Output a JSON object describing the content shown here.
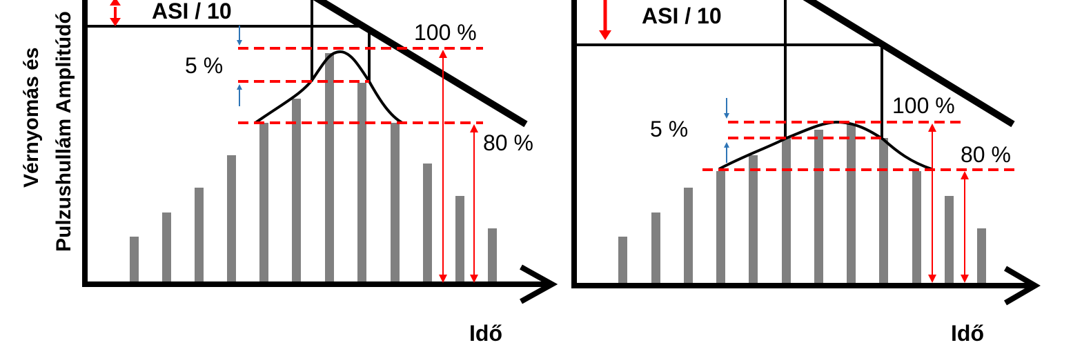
{
  "y_axis_label_line1": "Vérnyomás és",
  "y_axis_label_line2": "Pulzushullám Amplitúdó",
  "panels": [
    {
      "asi_label": "ASI / 10",
      "x_axis_label": "Idő",
      "pct_100": "100 %",
      "pct_80": "80 %",
      "pct_5": "5 %"
    },
    {
      "asi_label": "ASI / 10",
      "x_axis_label": "Idő",
      "pct_100": "100 %",
      "pct_80": "80 %",
      "pct_5": "5 %"
    }
  ],
  "colors": {
    "bars": "#808080",
    "axes": "#000000",
    "dashed": "#ff0000",
    "arrows_red": "#ff0000",
    "arrows_blue": "#2e75b6"
  }
}
